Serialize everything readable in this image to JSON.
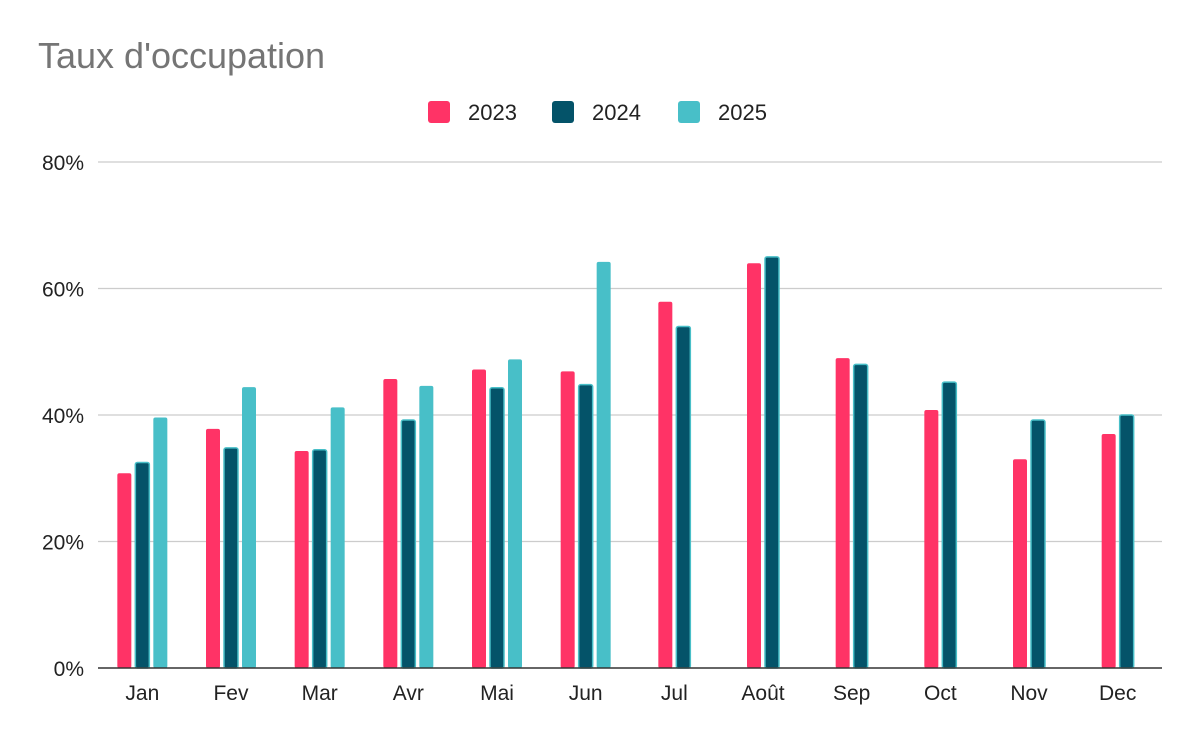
{
  "chart_data": {
    "type": "bar",
    "title": "Taux d'occupation",
    "xlabel": "",
    "ylabel": "",
    "categories": [
      "Jan",
      "Fev",
      "Mar",
      "Avr",
      "Mai",
      "Jun",
      "Jul",
      "Août",
      "Sep",
      "Oct",
      "Nov",
      "Dec"
    ],
    "series": [
      {
        "name": "2023",
        "color": "#ff3366",
        "values": [
          30.8,
          37.8,
          34.3,
          45.7,
          47.2,
          46.9,
          57.9,
          64.0,
          49.0,
          40.8,
          33.0,
          37.0
        ]
      },
      {
        "name": "2024",
        "color": "#045369",
        "values": [
          32.5,
          34.8,
          34.5,
          39.2,
          44.3,
          44.8,
          54.0,
          65.0,
          48.0,
          45.2,
          39.2,
          40.0
        ]
      },
      {
        "name": "2025",
        "color": "#48bfc8",
        "values": [
          39.6,
          44.4,
          41.2,
          44.6,
          48.8,
          64.2,
          null,
          null,
          null,
          null,
          null,
          null
        ]
      }
    ],
    "ylim": [
      0,
      80
    ],
    "yticks": [
      0,
      20,
      40,
      60,
      80
    ],
    "ytick_labels": [
      "0%",
      "20%",
      "40%",
      "60%",
      "80%"
    ],
    "grid": true,
    "legend_position": "top-center"
  }
}
